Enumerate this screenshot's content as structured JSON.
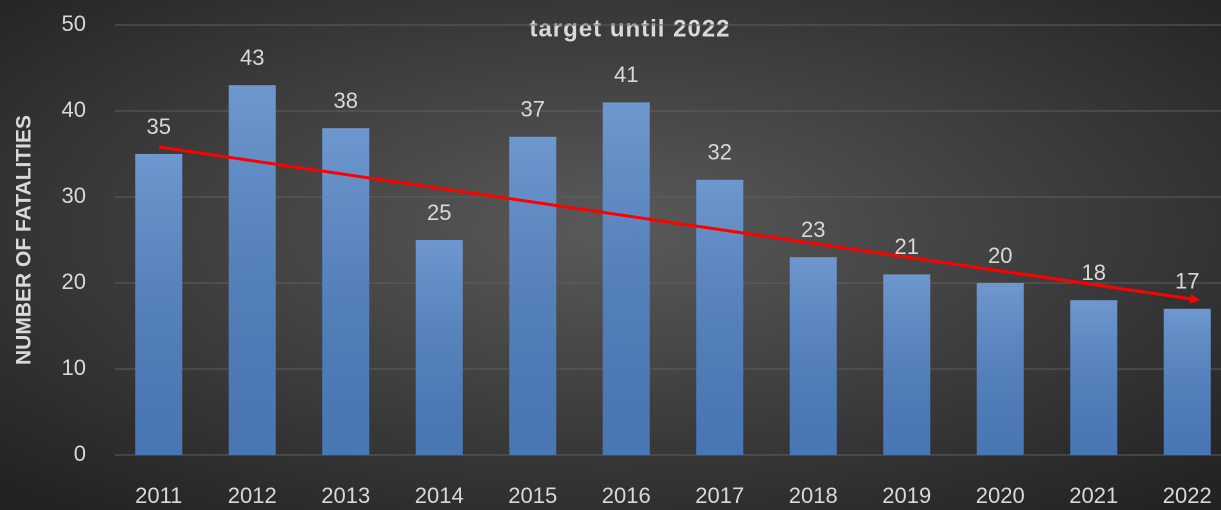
{
  "chart_data": {
    "type": "bar",
    "title": "target until 2022",
    "y_axis_label": "NUMBER OF FATALITIES",
    "categories": [
      "2011",
      "2012",
      "2013",
      "2014",
      "2015",
      "2016",
      "2017",
      "2018",
      "2019",
      "2020",
      "2021",
      "2022"
    ],
    "values": [
      35,
      43,
      38,
      25,
      37,
      41,
      32,
      23,
      21,
      20,
      18,
      17
    ],
    "color": "#4f81c4",
    "ylim": [
      0,
      50
    ],
    "yticks": [
      0,
      10,
      20,
      30,
      40,
      50
    ],
    "grid": true
  }
}
